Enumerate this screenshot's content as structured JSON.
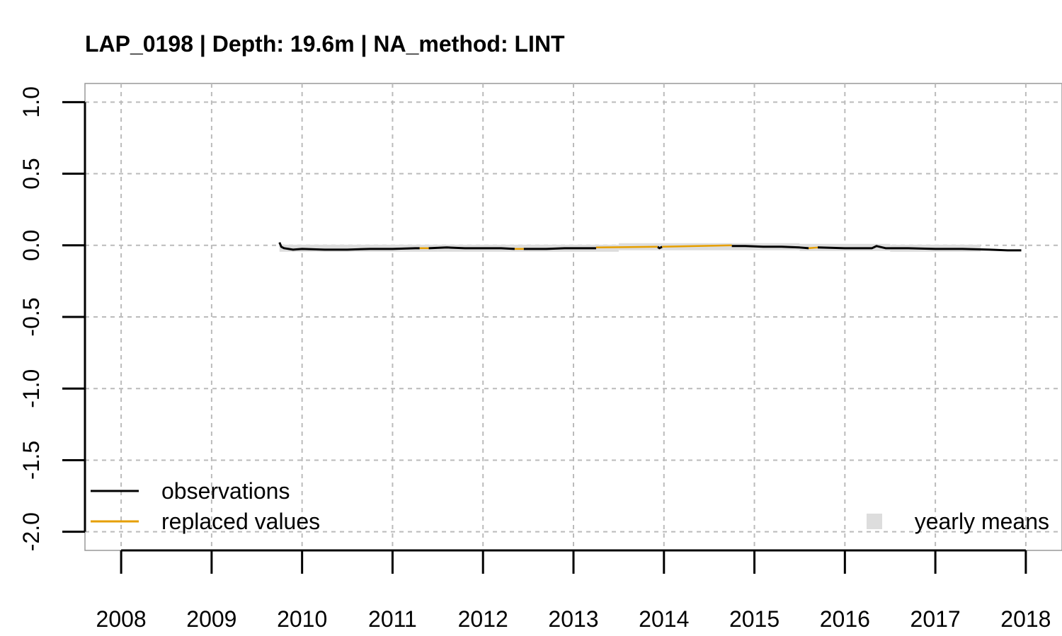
{
  "chart_data": {
    "type": "line",
    "title": "LAP_0198 | Depth: 19.6m | NA_method: LINT",
    "xlabel": "",
    "ylabel": "",
    "xlim": [
      2007.6,
      2018.4
    ],
    "ylim": [
      -2.13,
      1.13
    ],
    "x_ticks": [
      "2008",
      "2009",
      "2010",
      "2011",
      "2012",
      "2013",
      "2014",
      "2015",
      "2016",
      "2017",
      "2018"
    ],
    "y_ticks": [
      "-2.0",
      "-1.5",
      "-1.0",
      "-0.5",
      "0.0",
      "0.5",
      "1.0"
    ],
    "grid": true,
    "series": [
      {
        "name": "observations",
        "color": "#000000",
        "segments": [
          [
            [
              2009.75,
              0.02
            ],
            [
              2009.77,
              -0.01
            ],
            [
              2009.8,
              -0.02
            ],
            [
              2009.9,
              -0.03
            ],
            [
              2010.0,
              -0.025
            ],
            [
              2010.25,
              -0.03
            ],
            [
              2010.5,
              -0.03
            ],
            [
              2010.75,
              -0.025
            ],
            [
              2011.0,
              -0.025
            ],
            [
              2011.25,
              -0.02
            ],
            [
              2011.3,
              -0.02
            ]
          ],
          [
            [
              2011.4,
              -0.02
            ],
            [
              2011.6,
              -0.015
            ],
            [
              2011.8,
              -0.02
            ],
            [
              2012.0,
              -0.02
            ],
            [
              2012.2,
              -0.02
            ],
            [
              2012.35,
              -0.025
            ]
          ],
          [
            [
              2012.45,
              -0.025
            ],
            [
              2012.7,
              -0.025
            ],
            [
              2012.9,
              -0.02
            ],
            [
              2013.1,
              -0.02
            ],
            [
              2013.25,
              -0.02
            ]
          ],
          [
            [
              2013.93,
              -0.01
            ],
            [
              2013.95,
              -0.02
            ],
            [
              2013.98,
              -0.01
            ]
          ],
          [
            [
              2014.75,
              -0.005
            ],
            [
              2014.9,
              -0.005
            ],
            [
              2015.1,
              -0.01
            ],
            [
              2015.3,
              -0.01
            ],
            [
              2015.5,
              -0.015
            ],
            [
              2015.6,
              -0.02
            ]
          ],
          [
            [
              2015.7,
              -0.015
            ],
            [
              2016.0,
              -0.02
            ],
            [
              2016.3,
              -0.02
            ],
            [
              2016.35,
              -0.005
            ],
            [
              2016.45,
              -0.02
            ],
            [
              2016.7,
              -0.02
            ],
            [
              2017.0,
              -0.025
            ],
            [
              2017.3,
              -0.025
            ],
            [
              2017.6,
              -0.03
            ],
            [
              2017.8,
              -0.035
            ],
            [
              2017.95,
              -0.035
            ]
          ]
        ]
      },
      {
        "name": "replaced values",
        "color": "#E69F00",
        "segments": [
          [
            [
              2011.3,
              -0.02
            ],
            [
              2011.4,
              -0.02
            ]
          ],
          [
            [
              2012.35,
              -0.025
            ],
            [
              2012.45,
              -0.025
            ]
          ],
          [
            [
              2013.25,
              -0.015
            ],
            [
              2013.93,
              -0.01
            ]
          ],
          [
            [
              2013.98,
              -0.01
            ],
            [
              2014.75,
              0.0
            ]
          ],
          [
            [
              2015.6,
              -0.02
            ],
            [
              2015.7,
              -0.015
            ]
          ]
        ]
      },
      {
        "name": "yearly means",
        "color": "#DDDDDD",
        "values": [
          [
            2010.0,
            -0.02
          ],
          [
            2011.0,
            -0.02
          ],
          [
            2012.0,
            -0.02
          ],
          [
            2013.0,
            -0.02
          ],
          [
            2014.0,
            -0.01
          ],
          [
            2015.0,
            -0.01
          ],
          [
            2016.0,
            -0.015
          ],
          [
            2017.0,
            -0.02
          ]
        ]
      }
    ],
    "legend": {
      "left_placement": "bottom-left",
      "right_placement": "bottom-right",
      "items_left": [
        "observations",
        "replaced values"
      ],
      "items_right": [
        "yearly means"
      ]
    }
  }
}
